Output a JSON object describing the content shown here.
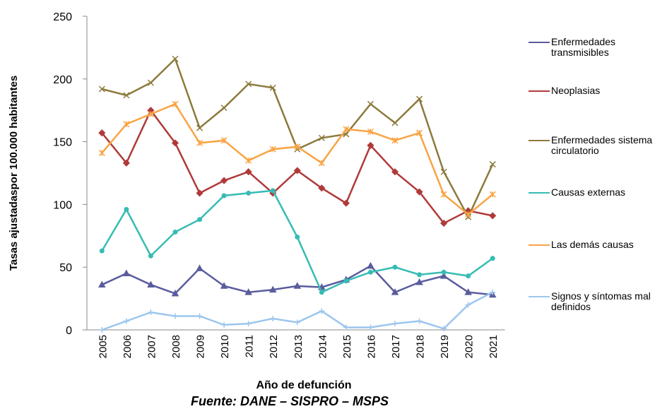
{
  "chart_data": {
    "type": "line",
    "y_label": "Tasas ajustadaspor 100.000 habitantes",
    "x_label": "Año de defunción",
    "source": "Fuente: DANE – SISPRO – MSPS",
    "categories": [
      "2005",
      "2006",
      "2007",
      "2008",
      "2009",
      "2010",
      "2011",
      "2012",
      "2013",
      "2014",
      "2015",
      "2016",
      "2017",
      "2018",
      "2019",
      "2020",
      "2021"
    ],
    "ylim": [
      0,
      250
    ],
    "yticks": [
      0,
      50,
      100,
      150,
      200,
      250
    ],
    "grid": false,
    "legend": "right",
    "series": [
      {
        "name": "Enfermedades transmisibles",
        "color": "#5a5c9e",
        "marker": "triangle",
        "values": [
          36,
          45,
          36,
          29,
          49,
          35,
          30,
          32,
          35,
          34,
          40,
          51,
          30,
          38,
          43,
          30,
          28
        ]
      },
      {
        "name": "Neoplasias",
        "color": "#b03a3a",
        "marker": "diamond",
        "values": [
          157,
          133,
          175,
          149,
          109,
          119,
          126,
          109,
          127,
          113,
          101,
          147,
          126,
          110,
          85,
          95,
          91
        ]
      },
      {
        "name": "Enfermedades sistema circulatorio",
        "color": "#8c7a3c",
        "marker": "x",
        "values": [
          192,
          187,
          197,
          216,
          161,
          177,
          196,
          193,
          144,
          153,
          156,
          180,
          165,
          184,
          126,
          90,
          132
        ]
      },
      {
        "name": "Causas externas",
        "color": "#36bcb4",
        "marker": "circle",
        "values": [
          63,
          96,
          59,
          78,
          88,
          107,
          109,
          111,
          74,
          30,
          39,
          46,
          50,
          44,
          46,
          43,
          57
        ]
      },
      {
        "name": "Las demás causas",
        "color": "#f9a444",
        "marker": "star",
        "values": [
          141,
          164,
          172,
          180,
          149,
          151,
          135,
          144,
          146,
          133,
          160,
          158,
          151,
          157,
          108,
          92,
          108
        ]
      },
      {
        "name": "Signos y síntomas mal definidos",
        "color": "#9cc6ee",
        "marker": "plus",
        "values": [
          0,
          7,
          14,
          11,
          11,
          4,
          5,
          9,
          6,
          15,
          2,
          2,
          5,
          7,
          1,
          20,
          30
        ]
      }
    ]
  }
}
